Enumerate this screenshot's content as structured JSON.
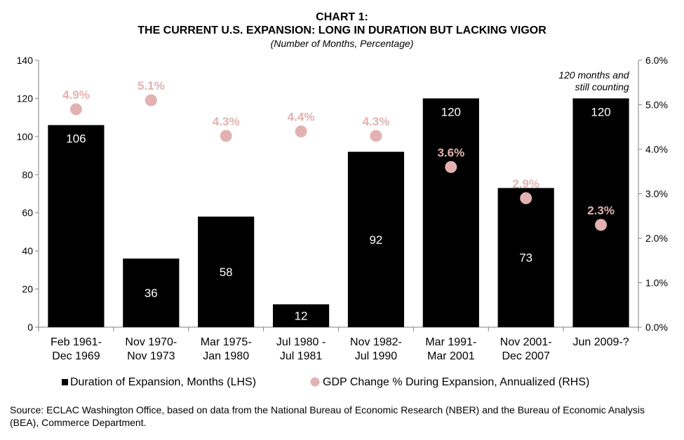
{
  "chart_data": {
    "type": "bar",
    "title": [
      "CHART 1:",
      "THE CURRENT U.S. EXPANSION: LONG IN DURATION BUT LACKING VIGOR"
    ],
    "subtitle": "(Number of Months, Percentage)",
    "categories": [
      [
        "Feb 1961-",
        "Dec 1969"
      ],
      [
        "Nov 1970-",
        "Nov 1973"
      ],
      [
        "Mar 1975-",
        "Jan 1980"
      ],
      [
        "Jul 1980  -",
        "Jul 1981"
      ],
      [
        "Nov 1982-",
        "Jul 1990"
      ],
      [
        "Mar 1991-",
        "Mar 2001"
      ],
      [
        "Nov 2001-",
        "Dec 2007"
      ],
      [
        "Jun 2009-?",
        ""
      ]
    ],
    "series": [
      {
        "name": "Duration of Expansion, Months (LHS)",
        "type": "bar",
        "axis": "left",
        "color": "#000000",
        "values": [
          106,
          36,
          58,
          12,
          92,
          120,
          73,
          120
        ],
        "labels": [
          "106",
          "36",
          "58",
          "12",
          "92",
          "120",
          "73",
          "120"
        ]
      },
      {
        "name": "GDP Change % During Expansion, Annualized (RHS)",
        "type": "scatter",
        "axis": "right",
        "color": "#e2b2b2",
        "values": [
          4.9,
          5.1,
          4.3,
          4.4,
          4.3,
          3.6,
          2.9,
          2.3
        ],
        "labels": [
          "4.9%",
          "5.1%",
          "4.3%",
          "4.4%",
          "4.3%",
          "3.6%",
          "2.9%",
          "2.3%"
        ]
      }
    ],
    "y_left": {
      "range": [
        0,
        140
      ],
      "ticks": [
        0,
        20,
        40,
        60,
        80,
        100,
        120,
        140
      ],
      "tick_labels": [
        "0",
        "20",
        "40",
        "60",
        "80",
        "100",
        "120",
        "140"
      ]
    },
    "y_right": {
      "range": [
        0,
        6
      ],
      "ticks": [
        0,
        1,
        2,
        3,
        4,
        5,
        6
      ],
      "tick_labels": [
        "0.0%",
        "1.0%",
        "2.0%",
        "3.0%",
        "4.0%",
        "5.0%",
        "6.0%"
      ]
    },
    "annotation": [
      "120 months and",
      "still counting"
    ],
    "legend_position": "bottom"
  },
  "source_text": "Source: ECLAC Washington Office, based on data from the National Bureau of Economic Research (NBER) and the Bureau of Economic Analysis (BEA), Commerce Department."
}
